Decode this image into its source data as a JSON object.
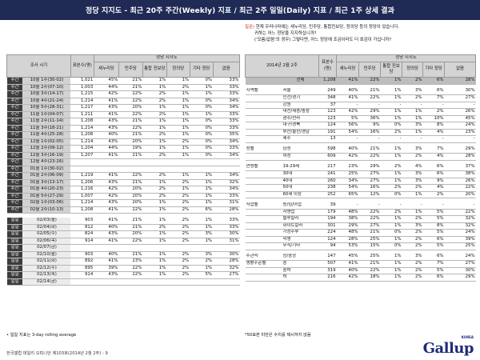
{
  "header": {
    "title": "정당 지지도 - 최근 20주 주간(Weekly) 지표 / 최근 2주 일일(Daily) 지표 / 최근 1주 상세 결과"
  },
  "left": {
    "h_period": "조사 시기",
    "h_n": "표본수(명)",
    "h_group": "정당 지지도",
    "h_cols": [
      "새누리당",
      "민주당",
      "통합 진보당",
      "정의당",
      "기타 정당",
      "없음"
    ],
    "weekly": [
      {
        "t": "주간",
        "p": "10월 1주(30-02)",
        "n": "1,021",
        "v": [
          "45%",
          "21%",
          "1%",
          "1%",
          "0%",
          "33%"
        ]
      },
      {
        "t": "주간",
        "p": "10월 2주(07-10)",
        "n": "1,003",
        "v": [
          "44%",
          "21%",
          "1%",
          "2%",
          "1%",
          "33%"
        ]
      },
      {
        "t": "주간",
        "p": "10월 3주(14-17)",
        "n": "1,215",
        "v": [
          "42%",
          "22%",
          "2%",
          "1%",
          "1%",
          "33%"
        ]
      },
      {
        "t": "주간",
        "p": "10월 4주(21-24)",
        "n": "1,214",
        "v": [
          "41%",
          "22%",
          "2%",
          "1%",
          "0%",
          "34%"
        ]
      },
      {
        "t": "주간",
        "p": "10월 5주(28-31)",
        "n": "1,217",
        "v": [
          "43%",
          "20%",
          "1%",
          "1%",
          "0%",
          "34%"
        ]
      },
      {
        "t": "주간",
        "p": "11월 1주(04-07)",
        "n": "1,211",
        "v": [
          "41%",
          "22%",
          "2%",
          "1%",
          "1%",
          "33%"
        ]
      },
      {
        "t": "주간",
        "p": "11월 2주(11-14)",
        "n": "1,208",
        "v": [
          "43%",
          "21%",
          "1%",
          "1%",
          "0%",
          "33%"
        ]
      },
      {
        "t": "주간",
        "p": "11월 3주(18-21)",
        "n": "1,214",
        "v": [
          "43%",
          "22%",
          "1%",
          "1%",
          "0%",
          "33%"
        ]
      },
      {
        "t": "주간",
        "p": "11월 4주(25-28)",
        "n": "1,208",
        "v": [
          "40%",
          "21%",
          "2%",
          "1%",
          "0%",
          "35%"
        ]
      },
      {
        "t": "주간",
        "p": "12월 1주(02-05)",
        "n": "1,214",
        "v": [
          "43%",
          "20%",
          "1%",
          "2%",
          "0%",
          "34%"
        ]
      },
      {
        "t": "주간",
        "p": "12월 2주(09-12)",
        "n": "1,204",
        "v": [
          "44%",
          "19%",
          "1%",
          "1%",
          "0%",
          "33%"
        ]
      },
      {
        "t": "주간",
        "p": "12월 3주(16-19)",
        "n": "1,207",
        "v": [
          "41%",
          "21%",
          "2%",
          "1%",
          "0%",
          "34%"
        ]
      },
      {
        "t": "주간",
        "p": "12월 4주(23-26)",
        "n": "",
        "v": [
          "",
          "",
          "",
          "",
          "",
          ""
        ]
      },
      {
        "t": "주간",
        "p": "01월 1주(30-02)",
        "n": "",
        "v": [
          "",
          "",
          "",
          "",
          "",
          ""
        ]
      },
      {
        "t": "주간",
        "p": "01월 2주(06-09)",
        "n": "1,219",
        "v": [
          "41%",
          "22%",
          "2%",
          "1%",
          "1%",
          "34%"
        ]
      },
      {
        "t": "주간",
        "p": "01월 3주(13-17)",
        "n": "1,206",
        "v": [
          "43%",
          "21%",
          "1%",
          "2%",
          "1%",
          "32%"
        ]
      },
      {
        "t": "주간",
        "p": "01월 4주(20-23)",
        "n": "1,216",
        "v": [
          "42%",
          "20%",
          "2%",
          "1%",
          "1%",
          "34%"
        ]
      },
      {
        "t": "주간",
        "p": "01월 5주(27-29)",
        "n": "1,007",
        "v": [
          "42%",
          "20%",
          "2%",
          "2%",
          "1%",
          "33%"
        ]
      },
      {
        "t": "주간",
        "p": "02월 1주(03-06)",
        "n": "1,214",
        "v": [
          "43%",
          "20%",
          "1%",
          "2%",
          "1%",
          "31%"
        ]
      },
      {
        "t": "주간",
        "p": "02월 2주(10-13)",
        "n": "1,208",
        "v": [
          "41%",
          "22%",
          "1%",
          "2%",
          "6%",
          "28%"
        ]
      }
    ],
    "daily": [
      {
        "t": "일일",
        "p": "02/03(월)",
        "n": "903",
        "v": [
          "41%",
          "21%",
          "1%",
          "2%",
          "1%",
          "33%"
        ]
      },
      {
        "t": "일일",
        "p": "02/04(화)",
        "n": "812",
        "v": [
          "40%",
          "21%",
          "2%",
          "2%",
          "1%",
          "33%"
        ]
      },
      {
        "t": "일일",
        "p": "02/05(수)",
        "n": "824",
        "v": [
          "43%",
          "20%",
          "1%",
          "2%",
          "3%",
          "30%"
        ]
      },
      {
        "t": "일일",
        "p": "02/06(목)",
        "n": "914",
        "v": [
          "41%",
          "22%",
          "1%",
          "2%",
          "1%",
          "31%"
        ]
      },
      {
        "t": "일일",
        "p": "02/07(금)",
        "n": "",
        "v": [
          "",
          "",
          "",
          "",
          "",
          ""
        ]
      },
      {
        "t": "일일",
        "p": "02/10(월)",
        "n": "903",
        "v": [
          "40%",
          "21%",
          "1%",
          "2%",
          "3%",
          "30%"
        ]
      },
      {
        "t": "일일",
        "p": "02/11(화)",
        "n": "892",
        "v": [
          "41%",
          "23%",
          "1%",
          "2%",
          "2%",
          "28%"
        ]
      },
      {
        "t": "일일",
        "p": "02/12(수)",
        "n": "895",
        "v": [
          "39%",
          "22%",
          "1%",
          "2%",
          "1%",
          "32%"
        ]
      },
      {
        "t": "일일",
        "p": "02/13(목)",
        "n": "914",
        "v": [
          "43%",
          "22%",
          "1%",
          "2%",
          "5%",
          "27%"
        ]
      },
      {
        "t": "일일",
        "p": "02/14(금)",
        "n": "",
        "v": [
          "",
          "",
          "",
          "",
          "",
          ""
        ]
      }
    ],
    "footnote": "• 일일 지표는 3-day rolling average"
  },
  "question": {
    "q_tag": "질문)",
    "q1": "현재 우리나라에는 새누리당, 민주당, 통합진보당, 정의당 등의 정당이 있습니다.",
    "q2": "귀하는 어느 정당을 지지하십니까?",
    "q3": "('모름/없음'의 경우) 그렇다면, 어느 정당에 조금이라도 더 호감이 가십니까?"
  },
  "right": {
    "h_period": "2014년 2월 2주",
    "h_n": "표본수(명)",
    "h_group": "정당 지지도",
    "h_cols": [
      "새누리당",
      "민주당",
      "통합 진보당",
      "정의당",
      "기타 정당",
      "없음"
    ],
    "rows": [
      {
        "g": "",
        "s": "전체",
        "n": "1,208",
        "v": [
          "41%",
          "22%",
          "1%",
          "2%",
          "6%",
          "28%"
        ],
        "total": true
      },
      {
        "g": "지역별",
        "s": "서울",
        "n": "249",
        "v": [
          "40%",
          "21%",
          "1%",
          "3%",
          "6%",
          "30%"
        ]
      },
      {
        "g": "",
        "s": "인천/경기",
        "n": "348",
        "v": [
          "41%",
          "22%",
          "1%",
          "2%",
          "7%",
          "27%"
        ]
      },
      {
        "g": "",
        "s": "강원",
        "n": "37",
        "v": [
          "-",
          "-",
          "-",
          "-",
          "-",
          "-"
        ]
      },
      {
        "g": "",
        "s": "대전/세종/충청",
        "n": "123",
        "v": [
          "42%",
          "29%",
          "1%",
          "1%",
          "2%",
          "26%"
        ]
      },
      {
        "g": "",
        "s": "광주/전라",
        "n": "123",
        "v": [
          "5%",
          "36%",
          "1%",
          "1%",
          "10%",
          "45%"
        ]
      },
      {
        "g": "",
        "s": "대구/경북",
        "n": "124",
        "v": [
          "56%",
          "9%",
          "0%",
          "3%",
          "8%",
          "24%"
        ]
      },
      {
        "g": "",
        "s": "부산/울산/경남",
        "n": "191",
        "v": [
          "54%",
          "16%",
          "2%",
          "1%",
          "4%",
          "23%"
        ]
      },
      {
        "g": "",
        "s": "제주",
        "n": "13",
        "v": [
          "-",
          "-",
          "-",
          "-",
          "-",
          "-"
        ]
      },
      {
        "g": "성별",
        "s": "남성",
        "n": "598",
        "v": [
          "40%",
          "21%",
          "1%",
          "3%",
          "7%",
          "29%"
        ]
      },
      {
        "g": "",
        "s": "여성",
        "n": "609",
        "v": [
          "42%",
          "22%",
          "1%",
          "2%",
          "4%",
          "28%"
        ]
      },
      {
        "g": "연령별",
        "s": "19-29세",
        "n": "217",
        "v": [
          "23%",
          "29%",
          "2%",
          "4%",
          "6%",
          "37%"
        ]
      },
      {
        "g": "",
        "s": "30대",
        "n": "241",
        "v": [
          "25%",
          "27%",
          "1%",
          "3%",
          "6%",
          "38%"
        ]
      },
      {
        "g": "",
        "s": "40대",
        "n": "260",
        "v": [
          "34%",
          "27%",
          "1%",
          "3%",
          "9%",
          "26%"
        ]
      },
      {
        "g": "",
        "s": "50대",
        "n": "238",
        "v": [
          "54%",
          "16%",
          "2%",
          "2%",
          "4%",
          "22%"
        ]
      },
      {
        "g": "",
        "s": "60세 이상",
        "n": "252",
        "v": [
          "65%",
          "12%",
          "0%",
          "1%",
          "2%",
          "20%"
        ]
      },
      {
        "g": "직업별",
        "s": "농/임/어업",
        "n": "39",
        "v": [
          "-",
          "-",
          "-",
          "-",
          "-",
          "-"
        ]
      },
      {
        "g": "",
        "s": "자영업",
        "n": "179",
        "v": [
          "48%",
          "22%",
          "2%",
          "1%",
          "5%",
          "22%"
        ]
      },
      {
        "g": "",
        "s": "블루칼라",
        "n": "194",
        "v": [
          "38%",
          "22%",
          "1%",
          "2%",
          "5%",
          "32%"
        ]
      },
      {
        "g": "",
        "s": "화이트칼라",
        "n": "301",
        "v": [
          "29%",
          "27%",
          "1%",
          "3%",
          "8%",
          "32%"
        ]
      },
      {
        "g": "",
        "s": "가정주부",
        "n": "224",
        "v": [
          "48%",
          "21%",
          "0%",
          "2%",
          "5%",
          "24%"
        ]
      },
      {
        "g": "",
        "s": "학생",
        "n": "124",
        "v": [
          "28%",
          "25%",
          "1%",
          "2%",
          "6%",
          "39%"
        ]
      },
      {
        "g": "",
        "s": "무직/기타",
        "n": "94",
        "v": [
          "53%",
          "15%",
          "0%",
          "2%",
          "5%",
          "25%"
        ]
      },
      {
        "g": "주관적",
        "s": "상/중상",
        "n": "147",
        "v": [
          "45%",
          "25%",
          "1%",
          "3%",
          "6%",
          "24%"
        ]
      },
      {
        "g": "생활수준별",
        "s": "중",
        "n": "507",
        "v": [
          "41%",
          "21%",
          "1%",
          "2%",
          "7%",
          "27%"
        ]
      },
      {
        "g": "",
        "s": "중하",
        "n": "319",
        "v": [
          "40%",
          "22%",
          "1%",
          "2%",
          "5%",
          "30%"
        ]
      },
      {
        "g": "",
        "s": "하",
        "n": "216",
        "v": [
          "42%",
          "18%",
          "1%",
          "2%",
          "6%",
          "29%"
        ]
      }
    ],
    "footnote": "*50표본 미만은 수치를 제시하지 않음"
  },
  "page_footer": "한국갤럽 데일리 오피니언 제103호(2014년 2월 2주) - 9",
  "logo": {
    "text": "Gallup",
    "sup": "KOREA"
  }
}
